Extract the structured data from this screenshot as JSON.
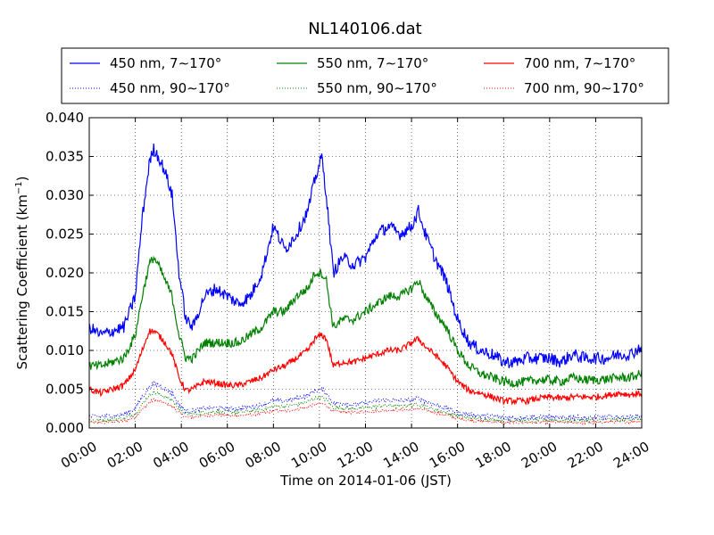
{
  "chart_data": {
    "type": "line",
    "title": "NL140106.dat",
    "xlabel": "Time on 2014-01-06 (JST)",
    "ylabel_main": "Scattering Coefficient (km",
    "ylabel_sup": "−1",
    "ylabel_close": ")",
    "xlim": [
      0,
      24
    ],
    "ylim": [
      0,
      0.04
    ],
    "x_ticks": [
      {
        "value": 0,
        "label": "00:00"
      },
      {
        "value": 2,
        "label": "02:00"
      },
      {
        "value": 4,
        "label": "04:00"
      },
      {
        "value": 6,
        "label": "06:00"
      },
      {
        "value": 8,
        "label": "08:00"
      },
      {
        "value": 10,
        "label": "10:00"
      },
      {
        "value": 12,
        "label": "12:00"
      },
      {
        "value": 14,
        "label": "14:00"
      },
      {
        "value": 16,
        "label": "16:00"
      },
      {
        "value": 18,
        "label": "18:00"
      },
      {
        "value": 20,
        "label": "20:00"
      },
      {
        "value": 22,
        "label": "22:00"
      },
      {
        "value": 24,
        "label": "24:00"
      }
    ],
    "y_ticks": [
      {
        "value": 0,
        "label": "0.000"
      },
      {
        "value": 0.005,
        "label": "0.005"
      },
      {
        "value": 0.01,
        "label": "0.010"
      },
      {
        "value": 0.015,
        "label": "0.015"
      },
      {
        "value": 0.02,
        "label": "0.020"
      },
      {
        "value": 0.025,
        "label": "0.025"
      },
      {
        "value": 0.03,
        "label": "0.030"
      },
      {
        "value": 0.035,
        "label": "0.035"
      },
      {
        "value": 0.04,
        "label": "0.040"
      }
    ],
    "grid": true,
    "legend_position": "top, above plot, 3 columns",
    "x": [
      0,
      0.5,
      1,
      1.5,
      2,
      2.3,
      2.6,
      2.8,
      3,
      3.3,
      3.6,
      3.9,
      4.2,
      4.5,
      5,
      5.5,
      6,
      6.5,
      7,
      7.5,
      8,
      8.5,
      9,
      9.5,
      9.8,
      10.1,
      10.3,
      10.6,
      11,
      11.5,
      12,
      12.5,
      13,
      13.5,
      14,
      14.3,
      14.6,
      15,
      15.5,
      16,
      16.5,
      17,
      17.5,
      18,
      18.5,
      19,
      19.5,
      20,
      20.5,
      21,
      21.5,
      22,
      22.5,
      23,
      23.5,
      24
    ],
    "series": [
      {
        "name": "450 nm, 7∼170°",
        "color": "#0000ff",
        "dash": "solid",
        "noise": 0.0008,
        "values": [
          0.013,
          0.012,
          0.0125,
          0.013,
          0.017,
          0.027,
          0.034,
          0.036,
          0.035,
          0.033,
          0.03,
          0.02,
          0.014,
          0.013,
          0.017,
          0.018,
          0.017,
          0.016,
          0.017,
          0.02,
          0.026,
          0.023,
          0.025,
          0.028,
          0.032,
          0.035,
          0.03,
          0.02,
          0.022,
          0.021,
          0.022,
          0.025,
          0.026,
          0.025,
          0.026,
          0.028,
          0.025,
          0.022,
          0.019,
          0.014,
          0.011,
          0.01,
          0.0095,
          0.0085,
          0.0085,
          0.009,
          0.009,
          0.009,
          0.0085,
          0.0095,
          0.009,
          0.009,
          0.009,
          0.0095,
          0.0095,
          0.0105
        ]
      },
      {
        "name": "550 nm, 7∼170°",
        "color": "#008000",
        "dash": "solid",
        "noise": 0.0006,
        "values": [
          0.008,
          0.008,
          0.0085,
          0.009,
          0.012,
          0.017,
          0.021,
          0.022,
          0.021,
          0.019,
          0.017,
          0.012,
          0.009,
          0.009,
          0.011,
          0.011,
          0.011,
          0.011,
          0.012,
          0.013,
          0.015,
          0.015,
          0.017,
          0.018,
          0.02,
          0.02,
          0.019,
          0.013,
          0.014,
          0.014,
          0.015,
          0.016,
          0.017,
          0.017,
          0.018,
          0.019,
          0.017,
          0.015,
          0.013,
          0.01,
          0.008,
          0.007,
          0.0065,
          0.006,
          0.0058,
          0.006,
          0.0062,
          0.0062,
          0.006,
          0.0065,
          0.0062,
          0.0062,
          0.0063,
          0.0065,
          0.0065,
          0.007
        ]
      },
      {
        "name": "700 nm, 7∼170°",
        "color": "#ff0000",
        "dash": "solid",
        "noise": 0.0004,
        "values": [
          0.005,
          0.0045,
          0.005,
          0.0055,
          0.0075,
          0.01,
          0.0125,
          0.0125,
          0.012,
          0.011,
          0.0095,
          0.0065,
          0.0048,
          0.005,
          0.006,
          0.0058,
          0.0055,
          0.0055,
          0.006,
          0.0065,
          0.0075,
          0.008,
          0.009,
          0.01,
          0.0115,
          0.012,
          0.0115,
          0.008,
          0.0085,
          0.0085,
          0.009,
          0.0095,
          0.01,
          0.01,
          0.011,
          0.0115,
          0.0105,
          0.0095,
          0.008,
          0.006,
          0.0048,
          0.0045,
          0.004,
          0.0035,
          0.0035,
          0.0035,
          0.0038,
          0.004,
          0.0038,
          0.004,
          0.004,
          0.004,
          0.0042,
          0.0045,
          0.0043,
          0.0045
        ]
      },
      {
        "name": "450 nm, 90∼170°",
        "color": "#0000ff",
        "dash": "dotted",
        "noise": 0.0003,
        "values": [
          0.0015,
          0.0015,
          0.0016,
          0.0017,
          0.0025,
          0.004,
          0.0052,
          0.0058,
          0.0055,
          0.005,
          0.0045,
          0.003,
          0.0022,
          0.0022,
          0.0025,
          0.0026,
          0.0025,
          0.0025,
          0.0027,
          0.003,
          0.0035,
          0.0035,
          0.0038,
          0.0042,
          0.0048,
          0.005,
          0.0045,
          0.0032,
          0.0032,
          0.003,
          0.0032,
          0.0035,
          0.0036,
          0.0035,
          0.0036,
          0.0038,
          0.0035,
          0.003,
          0.0026,
          0.002,
          0.0017,
          0.0016,
          0.0015,
          0.0014,
          0.0013,
          0.0014,
          0.0014,
          0.0014,
          0.0013,
          0.0014,
          0.0013,
          0.0013,
          0.0014,
          0.0014,
          0.0014,
          0.0016
        ]
      },
      {
        "name": "550 nm, 90∼170°",
        "color": "#008000",
        "dash": "dotted",
        "noise": 0.00025,
        "values": [
          0.001,
          0.001,
          0.0011,
          0.0012,
          0.0018,
          0.003,
          0.0042,
          0.0046,
          0.0044,
          0.004,
          0.0036,
          0.0025,
          0.0018,
          0.0018,
          0.002,
          0.0021,
          0.002,
          0.002,
          0.0022,
          0.0024,
          0.0028,
          0.0028,
          0.003,
          0.0034,
          0.0038,
          0.004,
          0.0036,
          0.0026,
          0.0026,
          0.0025,
          0.0026,
          0.0028,
          0.0029,
          0.0028,
          0.003,
          0.0031,
          0.0028,
          0.0024,
          0.002,
          0.0016,
          0.0013,
          0.0012,
          0.0011,
          0.001,
          0.001,
          0.001,
          0.001,
          0.0011,
          0.001,
          0.001,
          0.001,
          0.001,
          0.0011,
          0.0011,
          0.0011,
          0.0012
        ]
      },
      {
        "name": "700 nm, 90∼170°",
        "color": "#ff0000",
        "dash": "dotted",
        "noise": 0.0002,
        "values": [
          0.0007,
          0.0007,
          0.0008,
          0.0009,
          0.0014,
          0.0024,
          0.0033,
          0.0036,
          0.0035,
          0.0032,
          0.0028,
          0.002,
          0.0014,
          0.0014,
          0.0016,
          0.0017,
          0.0016,
          0.0016,
          0.0017,
          0.0019,
          0.0022,
          0.0022,
          0.0024,
          0.0027,
          0.003,
          0.0032,
          0.0029,
          0.0021,
          0.0021,
          0.002,
          0.0021,
          0.0022,
          0.0023,
          0.0023,
          0.0024,
          0.0025,
          0.0023,
          0.002,
          0.0017,
          0.0013,
          0.001,
          0.0009,
          0.0008,
          0.0007,
          0.0007,
          0.0007,
          0.0007,
          0.0008,
          0.0007,
          0.0007,
          0.0007,
          0.0007,
          0.0008,
          0.0008,
          0.0008,
          0.0009
        ]
      }
    ]
  }
}
